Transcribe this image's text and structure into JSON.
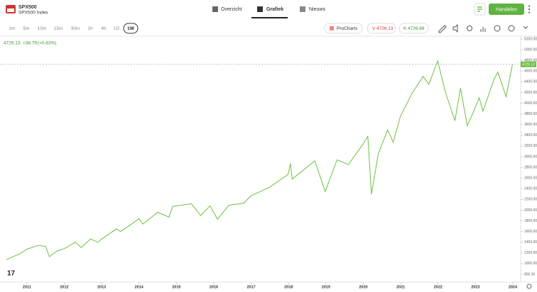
{
  "header": {
    "symbol": "SPX500",
    "name": "SPX500 Index",
    "tabs": [
      "Overzicht",
      "Grafiek",
      "Nieuws"
    ],
    "active_tab": 1,
    "trade_button": "Handelen"
  },
  "toolbar": {
    "timeframes": [
      "1m",
      "5m",
      "10m",
      "15m",
      "30m",
      "1h",
      "4h",
      "1D",
      "1W"
    ],
    "active_timeframe": 8,
    "procharts": "ProCharts",
    "sell": {
      "label": "V",
      "price": "4726.13"
    },
    "buy": {
      "label": "K",
      "price": "4726.88"
    }
  },
  "chart_data": {
    "type": "line",
    "color": "#6cbf3f",
    "last_price": 4726.13,
    "change": "+38.79",
    "change_pct": "(+0.83%)",
    "x": [
      2010.45,
      2010.6,
      2010.8,
      2011.0,
      2011.3,
      2011.5,
      2011.6,
      2011.8,
      2012.0,
      2012.3,
      2012.45,
      2012.7,
      2012.9,
      2013.0,
      2013.4,
      2013.5,
      2013.7,
      2014.0,
      2014.1,
      2014.5,
      2014.8,
      2014.9,
      2015.4,
      2015.65,
      2015.9,
      2016.1,
      2016.4,
      2016.8,
      2017.0,
      2017.5,
      2017.99,
      2018.05,
      2018.1,
      2018.7,
      2018.98,
      2019.3,
      2019.6,
      2019.99,
      2020.12,
      2020.22,
      2020.4,
      2020.65,
      2020.8,
      2020.99,
      2021.3,
      2021.6,
      2021.75,
      2021.99,
      2022.2,
      2022.45,
      2022.6,
      2022.78,
      2022.95,
      2023.1,
      2023.2,
      2023.5,
      2023.6,
      2023.82,
      2023.99
    ],
    "values": [
      1070,
      1120,
      1180,
      1270,
      1340,
      1320,
      1130,
      1230,
      1280,
      1400,
      1300,
      1460,
      1400,
      1460,
      1650,
      1600,
      1690,
      1840,
      1740,
      1960,
      1870,
      2070,
      2120,
      1900,
      2080,
      1830,
      2090,
      2130,
      2270,
      2430,
      2670,
      2870,
      2580,
      2920,
      2350,
      2940,
      2850,
      3230,
      3380,
      2300,
      3050,
      3500,
      3270,
      3750,
      4180,
      4500,
      4350,
      4790,
      4200,
      3670,
      4280,
      3580,
      3840,
      4100,
      3850,
      4450,
      4580,
      4120,
      4727
    ],
    "xlim": [
      2010.28,
      2024.21
    ],
    "xticks": [
      2011,
      2012,
      2013,
      2014,
      2015,
      2016,
      2017,
      2018,
      2019,
      2020,
      2021,
      2022,
      2023,
      2024
    ],
    "ylim": [
      654,
      5240
    ],
    "yticks": [
      {
        "value": 800,
        "label": "800.00"
      },
      {
        "value": 1000,
        "label": "1000.00"
      },
      {
        "value": 1200,
        "label": "1200.00"
      },
      {
        "value": 1400,
        "label": "1400.00"
      },
      {
        "value": 1600,
        "label": "1600.00"
      },
      {
        "value": 1800,
        "label": "1800.00"
      },
      {
        "value": 2000,
        "label": "2000.00"
      },
      {
        "value": 2200,
        "label": "2200.00"
      },
      {
        "value": 2400,
        "label": "2400.00"
      },
      {
        "value": 2600,
        "label": "2600.00"
      },
      {
        "value": 2800,
        "label": "2800.00"
      },
      {
        "value": 3000,
        "label": "3000.00"
      },
      {
        "value": 3200,
        "label": "3200.00"
      },
      {
        "value": 3400,
        "label": "3400.00"
      },
      {
        "value": 3600,
        "label": "3600.00"
      },
      {
        "value": 3800,
        "label": "3800.00"
      },
      {
        "value": 4000,
        "label": "4000.00"
      },
      {
        "value": 4200,
        "label": "4200.00"
      },
      {
        "value": 4400,
        "label": "4400.00"
      },
      {
        "value": 4600,
        "label": "4600.00"
      },
      {
        "value": 4800,
        "label": "4800.00"
      },
      {
        "value": 5000,
        "label": "5000.00"
      },
      {
        "value": 5200,
        "label": "5200.00"
      }
    ]
  }
}
